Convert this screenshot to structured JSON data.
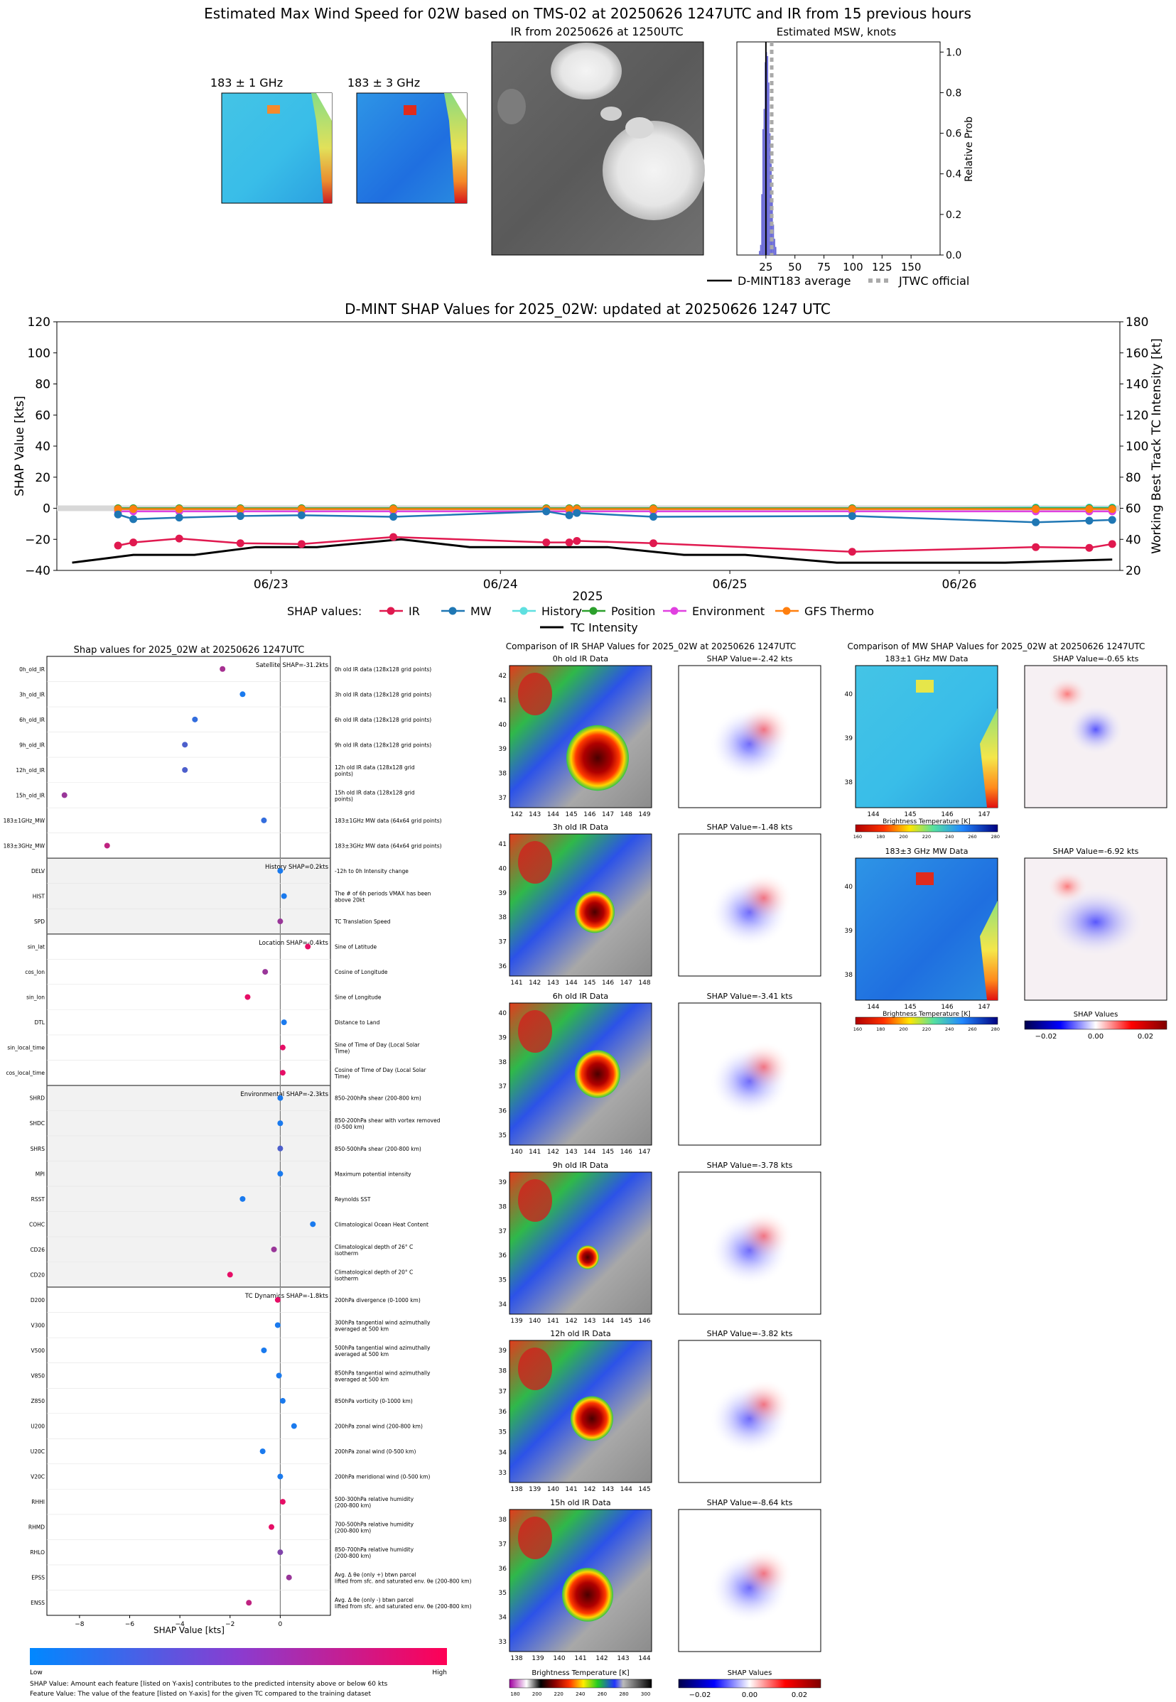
{
  "header": {
    "title": "Estimated Max Wind Speed for 02W based on TMS-02 at 20250626 1247UTC and IR from 15 previous hours",
    "mw1_title": "183 ± 1 GHz",
    "mw3_title": "183 ± 3 GHz",
    "ir_title": "IR from 20250626 at 1250UTC",
    "msw_title": "Estimated MSW, knots",
    "msw_ylabel": "Relative Prob",
    "msw_xticks": [
      "25",
      "50",
      "75",
      "100",
      "125",
      "150"
    ],
    "msw_yticks": [
      "0.0",
      "0.2",
      "0.4",
      "0.6",
      "0.8",
      "1.0"
    ],
    "legend_avg": "D-MINT183 average",
    "legend_jtwc": "JTWC official"
  },
  "timeseries": {
    "title": "D-MINT SHAP Values for 2025_02W: updated at 20250626 1247 UTC",
    "ylabel_left": "SHAP Value [kts]",
    "ylabel_right": "Working Best Track TC Intensity [kt]",
    "xlabel": "2025",
    "xticks": [
      "06/23",
      "06/24",
      "06/25",
      "06/26"
    ],
    "yticks_left": [
      "120",
      "100",
      "80",
      "60",
      "40",
      "20",
      "0",
      "−20",
      "−40"
    ],
    "yticks_right": [
      "180",
      "160",
      "140",
      "120",
      "100",
      "80",
      "60",
      "40",
      "20"
    ],
    "legend_prefix": "SHAP values:",
    "legend": [
      "IR",
      "MW",
      "History",
      "Position",
      "Environment",
      "GFS Thermo"
    ],
    "legend_intensity": "TC Intensity"
  },
  "colors": {
    "ir": "#e0194f",
    "mw": "#1f77b4",
    "history": "#5fe0e0",
    "position": "#2ca02c",
    "environment": "#e040e0",
    "gfs": "#ff7f0e",
    "intensity": "#000000",
    "hist_bar": "#6b6bd8",
    "low": "#0088ff",
    "high": "#ff0055"
  },
  "chart_data": {
    "type": "line",
    "x": [
      0.0,
      0.1,
      0.4,
      0.8,
      1.2,
      1.8,
      2.8,
      2.95,
      3.0,
      3.5,
      4.8,
      6.0,
      6.35,
      6.5
    ],
    "x_ticks_at": [
      1.0,
      2.5,
      4.0,
      5.5
    ],
    "ylim_left": [
      -40,
      120
    ],
    "ylim_right": [
      20,
      180
    ],
    "series": [
      {
        "name": "IR",
        "values": [
          -24,
          -22,
          -19.5,
          -22.5,
          -23,
          -18.5,
          -22,
          -22,
          -21,
          -22.5,
          -28,
          -25,
          -25.5,
          -23
        ]
      },
      {
        "name": "MW",
        "values": [
          -4,
          -7,
          -6,
          -5,
          -4.5,
          -5.5,
          -2,
          -4.5,
          -3,
          -5.5,
          -5,
          -9,
          -8,
          -7.5
        ]
      },
      {
        "name": "History",
        "values": [
          -0.5,
          -0.5,
          -0.5,
          -0.5,
          -0.5,
          -0.5,
          -0.5,
          -0.5,
          -0.5,
          -0.5,
          -0.5,
          0.5,
          0.5,
          0.5
        ]
      },
      {
        "name": "Position",
        "values": [
          0,
          0,
          0,
          0,
          0,
          0,
          0,
          0,
          0,
          0,
          0,
          0,
          0,
          0
        ]
      },
      {
        "name": "Environment",
        "values": [
          -2,
          -2,
          -2,
          -2,
          -2,
          -2,
          -2,
          -2,
          -2,
          -2,
          -2,
          -2,
          -2,
          -2
        ]
      },
      {
        "name": "GFS Thermo",
        "values": [
          -0.5,
          -0.5,
          -0.5,
          -0.5,
          -0.5,
          -0.5,
          -0.5,
          -0.5,
          -0.5,
          -0.5,
          -0.5,
          -0.5,
          -0.5,
          -0.5
        ]
      }
    ],
    "intensity": {
      "name": "TC Intensity",
      "x": [
        -0.3,
        0.1,
        0.5,
        0.9,
        1.3,
        1.85,
        2.3,
        2.75,
        3.2,
        3.7,
        4.1,
        4.7,
        5.2,
        5.8,
        6.5
      ],
      "values": [
        25,
        30,
        30,
        35,
        35,
        40,
        35,
        35,
        35,
        30,
        30,
        25,
        25,
        25,
        27
      ]
    }
  },
  "bottom": {
    "left_title": "Shap values for 2025_02W at 20250626 1247UTC",
    "ir_cmp_title": "Comparison of IR SHAP Values for 2025_02W at 20250626 1247UTC",
    "mw_cmp_title": "Comparison of MW SHAP Values for 2025_02W at 20250626 1247UTC",
    "xlabel": "SHAP Value [kts]",
    "xticks": [
      "−8",
      "−6",
      "−4",
      "−2",
      "0"
    ],
    "group_labels": [
      "Satellite SHAP=-31.2kts",
      "History SHAP=0.2kts",
      "Location SHAP=-0.4kts",
      "Environmental SHAP=-2.3kts",
      "TC Dynamics SHAP=-1.8kts"
    ],
    "colorbar_low": "Low",
    "colorbar_high": "High",
    "note1": "SHAP Value: Amount each feature [listed on Y-axis] contributes to the predicted intensity above or below 60 kts",
    "note2": "Feature Value: The value of the feature [listed on Y-axis] for the given TC compared to the training dataset",
    "features": [
      {
        "name": "0h_old_IR",
        "desc": "0h old IR data (128x128 grid points)",
        "shap": -2.3,
        "c": 0.65
      },
      {
        "name": "3h_old_IR",
        "desc": "3h old IR data (128x128 grid points)",
        "shap": -1.5,
        "c": 0.1
      },
      {
        "name": "6h_old_IR",
        "desc": "6h old IR data (128x128 grid points)",
        "shap": -3.4,
        "c": 0.2
      },
      {
        "name": "9h_old_IR",
        "desc": "9h old IR data (128x128 grid points)",
        "shap": -3.8,
        "c": 0.3
      },
      {
        "name": "12h_old_IR",
        "desc": "12h old IR data (128x128 grid points)",
        "shap": -3.8,
        "c": 0.3
      },
      {
        "name": "15h_old_IR",
        "desc": "15h old IR data (128x128 grid points)",
        "shap": -8.6,
        "c": 0.6
      },
      {
        "name": "183±1GHz_MW",
        "desc": "183±1GHz MW data (64x64 grid points)",
        "shap": -0.65,
        "c": 0.2
      },
      {
        "name": "183±3GHz_MW",
        "desc": "183±3GHz MW data (64x64 grid points)",
        "shap": -6.9,
        "c": 0.75
      },
      {
        "name": "DELV",
        "desc": "-12h to 0h Intensity change",
        "shap": 0.0,
        "c": 0.1
      },
      {
        "name": "HIST",
        "desc": "The # of 6h periods VMAX has been above 20kt",
        "shap": 0.15,
        "c": 0.1
      },
      {
        "name": "SPD",
        "desc": "TC Translation Speed",
        "shap": 0.0,
        "c": 0.6
      },
      {
        "name": "sin_lat",
        "desc": "Sine of Latitude",
        "shap": 1.1,
        "c": 0.9
      },
      {
        "name": "cos_lon",
        "desc": "Cosine of Longitude",
        "shap": -0.6,
        "c": 0.6
      },
      {
        "name": "sin_lon",
        "desc": "Sine of Longitude",
        "shap": -1.3,
        "c": 0.9
      },
      {
        "name": "DTL",
        "desc": "Distance to Land",
        "shap": 0.15,
        "c": 0.1
      },
      {
        "name": "sin_local_time",
        "desc": "Sine of Time of Day (Local Solar Time)",
        "shap": 0.1,
        "c": 0.9
      },
      {
        "name": "cos_local_time",
        "desc": "Cosine of Time of Day (Local Solar Time)",
        "shap": 0.1,
        "c": 0.9
      },
      {
        "name": "SHRD",
        "desc": "850-200hPa shear (200-800 km)",
        "shap": 0.0,
        "c": 0.1
      },
      {
        "name": "SHDC",
        "desc": "850-200hPa shear with vortex removed (0-500 km)",
        "shap": 0.0,
        "c": 0.1
      },
      {
        "name": "SHRS",
        "desc": "850-500hPa shear (200-800 km)",
        "shap": 0.0,
        "c": 0.3
      },
      {
        "name": "MPI",
        "desc": "Maximum potential intensity",
        "shap": 0.0,
        "c": 0.1
      },
      {
        "name": "RSST",
        "desc": "Reynolds SST",
        "shap": -1.5,
        "c": 0.1
      },
      {
        "name": "COHC",
        "desc": "Climatological Ocean Heat Content",
        "shap": 1.3,
        "c": 0.1
      },
      {
        "name": "CD26",
        "desc": "Climatological depth of 26° C isotherm",
        "shap": -0.25,
        "c": 0.6
      },
      {
        "name": "CD20",
        "desc": "Climatological depth of 20° C isotherm",
        "shap": -2.0,
        "c": 0.9
      },
      {
        "name": "D200",
        "desc": "200hPa divergence (0-1000 km)",
        "shap": -0.1,
        "c": 0.9
      },
      {
        "name": "V300",
        "desc": "300hPa tangential wind azimuthally averaged at 500 km",
        "shap": -0.1,
        "c": 0.1
      },
      {
        "name": "V500",
        "desc": "500hPa tangential wind azimuthally averaged at 500 km",
        "shap": -0.65,
        "c": 0.1
      },
      {
        "name": "V850",
        "desc": "850hPa tangential wind azimuthally averaged at 500 km",
        "shap": -0.05,
        "c": 0.1
      },
      {
        "name": "Z850",
        "desc": "850hPa vorticity (0-1000 km)",
        "shap": 0.1,
        "c": 0.1
      },
      {
        "name": "U200",
        "desc": "200hPa zonal wind (200-800 km)",
        "shap": 0.55,
        "c": 0.1
      },
      {
        "name": "U20C",
        "desc": "200hPa zonal wind (0-500 km)",
        "shap": -0.7,
        "c": 0.1
      },
      {
        "name": "V20C",
        "desc": "200hPa meridional wind (0-500 km)",
        "shap": 0.0,
        "c": 0.1
      },
      {
        "name": "RHHI",
        "desc": "500-300hPa relative humidity (200-800 km)",
        "shap": 0.1,
        "c": 0.9
      },
      {
        "name": "RHMD",
        "desc": "700-500hPa relative humidity (200-800 km)",
        "shap": -0.35,
        "c": 0.9
      },
      {
        "name": "RHLO",
        "desc": "850-700hPa relative humidity (200-800 km)",
        "shap": 0.0,
        "c": 0.5
      },
      {
        "name": "EPSS",
        "desc": "Avg. Δ θe (only +) btwn parcel lifted from sfc. and saturated env. θe (200-800 km)",
        "shap": 0.35,
        "c": 0.6
      },
      {
        "name": "ENSS",
        "desc": "Avg. Δ θe (only -) btwn parcel lifted from sfc. and saturated env. θe (200-800 km)",
        "shap": -1.25,
        "c": 0.75
      }
    ],
    "ir_panels": [
      {
        "title": "0h old IR Data",
        "shap": "SHAP Value=-2.42 kts",
        "yt": [
          "42",
          "41",
          "40",
          "39",
          "38",
          "37"
        ],
        "xt": [
          "142",
          "143",
          "144",
          "145",
          "146",
          "147",
          "148",
          "149"
        ]
      },
      {
        "title": "3h old IR Data",
        "shap": "SHAP Value=-1.48 kts",
        "yt": [
          "41",
          "40",
          "39",
          "38",
          "37",
          "36"
        ],
        "xt": [
          "141",
          "142",
          "143",
          "144",
          "145",
          "146",
          "147",
          "148"
        ]
      },
      {
        "title": "6h old IR Data",
        "shap": "SHAP Value=-3.41 kts",
        "yt": [
          "40",
          "39",
          "38",
          "37",
          "36",
          "35"
        ],
        "xt": [
          "140",
          "141",
          "142",
          "143",
          "144",
          "145",
          "146",
          "147"
        ]
      },
      {
        "title": "9h old IR Data",
        "shap": "SHAP Value=-3.78 kts",
        "yt": [
          "39",
          "38",
          "37",
          "36",
          "35",
          "34"
        ],
        "xt": [
          "139",
          "140",
          "141",
          "142",
          "143",
          "144",
          "145",
          "146"
        ]
      },
      {
        "title": "12h old IR Data",
        "shap": "SHAP Value=-3.82 kts",
        "yt": [
          "39",
          "38",
          "37",
          "36",
          "35",
          "34",
          "33"
        ],
        "xt": [
          "138",
          "139",
          "140",
          "141",
          "142",
          "143",
          "144",
          "145"
        ]
      },
      {
        "title": "15h old IR Data",
        "shap": "SHAP Value=-8.64 kts",
        "yt": [
          "38",
          "37",
          "36",
          "35",
          "34",
          "33"
        ],
        "xt": [
          "138",
          "139",
          "140",
          "141",
          "142",
          "143",
          "144"
        ]
      }
    ],
    "ir_cbar_label": "Brightness Temperature [K]",
    "ir_cbar_ticks": [
      "180",
      "200",
      "220",
      "240",
      "260",
      "280",
      "300"
    ],
    "shap_cbar_label": "SHAP Values",
    "shap_cbar_ticks": [
      "−0.02",
      "0.00",
      "0.02"
    ],
    "mw_panels": [
      {
        "title": "183±1 GHz MW Data",
        "shap": "SHAP Value=-0.65 kts",
        "yt": [
          "40",
          "39",
          "38"
        ],
        "xt": [
          "144",
          "145",
          "146",
          "147"
        ]
      },
      {
        "title": "183±3 GHz MW Data",
        "shap": "SHAP Value=-6.92 kts",
        "yt": [
          "40",
          "39",
          "38"
        ],
        "xt": [
          "144",
          "145",
          "146",
          "147"
        ]
      }
    ],
    "mw_cbar_label": "Brightness Temperature [K]",
    "mw_cbar_ticks": [
      "160",
      "180",
      "200",
      "220",
      "240",
      "260",
      "280"
    ]
  }
}
